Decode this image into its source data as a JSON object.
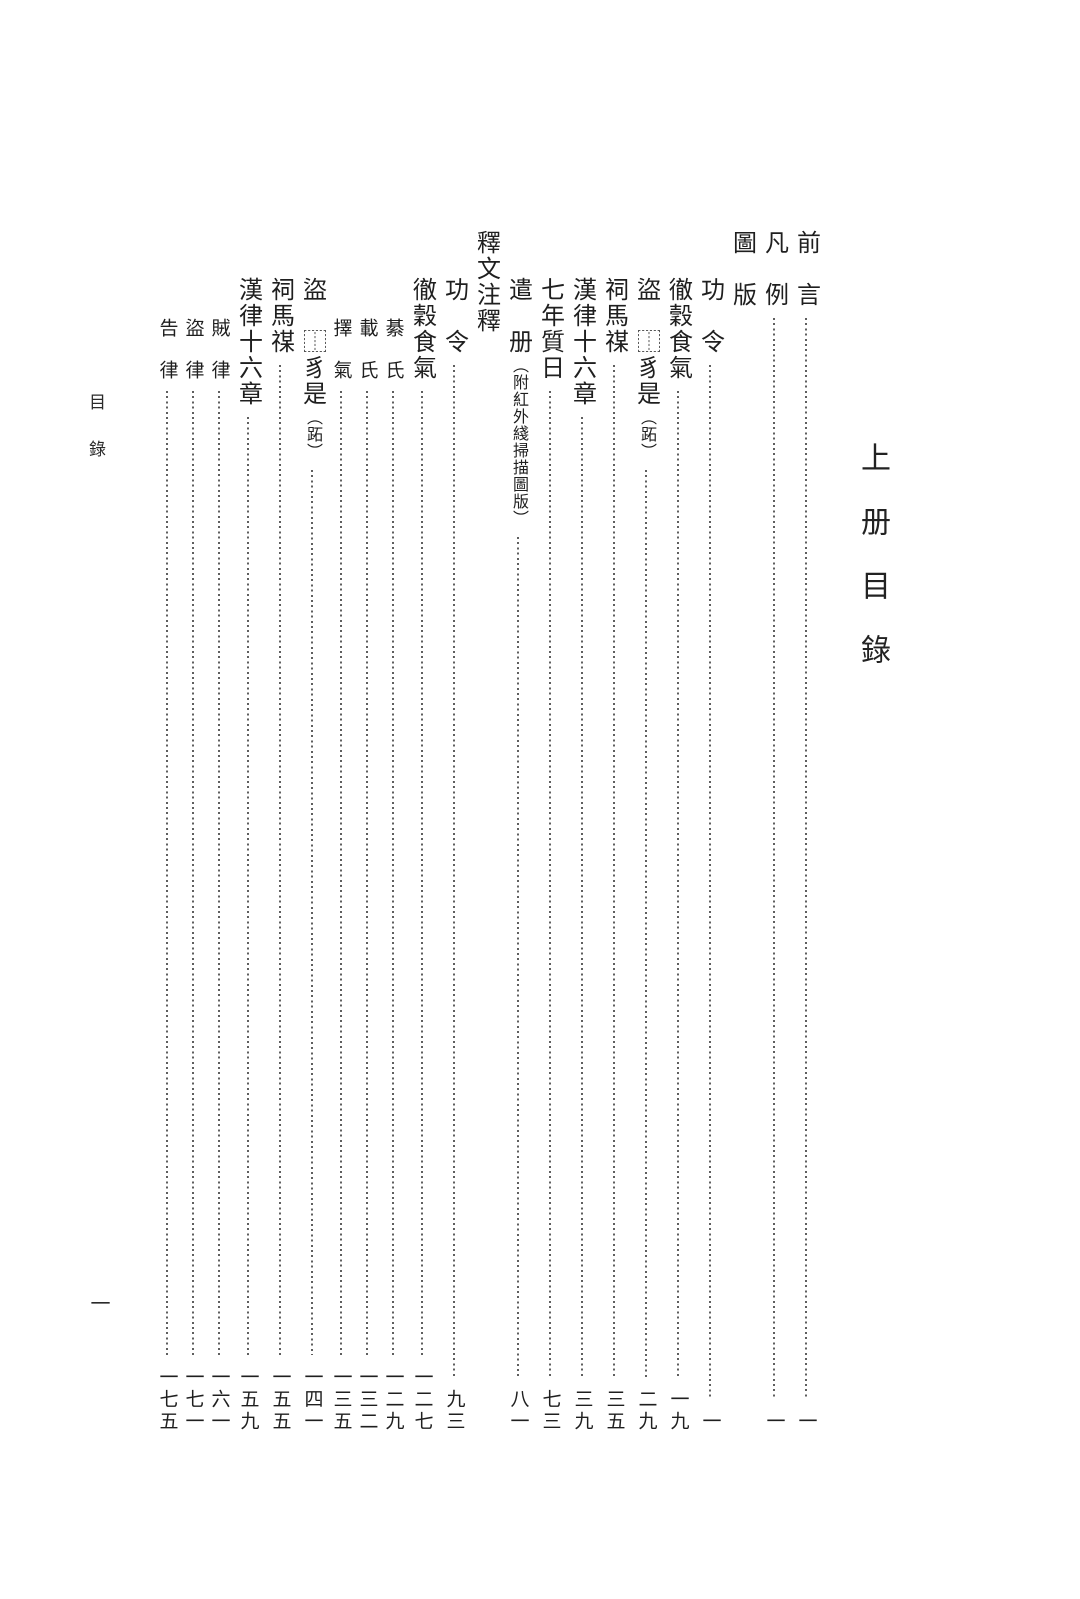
{
  "page": {
    "background": "#ffffff",
    "text_color": "#1f1f1f",
    "leader_dot_color": "#5f5f5f"
  },
  "book_title_vertical": "上　册　目　錄",
  "running_header": "目錄",
  "folio_page_number": "一",
  "toc": {
    "columns": [
      {
        "label": "前　言",
        "annotation": "",
        "page": "一",
        "level": "main",
        "indent": 0
      },
      {
        "label": "凡　例",
        "annotation": "",
        "page": "一",
        "level": "main",
        "indent": 0
      },
      {
        "label": "圖　版",
        "annotation": "",
        "page": "",
        "level": "main",
        "indent": 0
      },
      {
        "label": "功　令",
        "annotation": "",
        "page": "一",
        "level": "main",
        "indent": 1
      },
      {
        "label": "徹穀食氣",
        "annotation": "",
        "page": "一九",
        "level": "main",
        "indent": 1
      },
      {
        "label": "盜　⿰豸是",
        "annotation": "（跖）",
        "page": "二九",
        "level": "main",
        "indent": 1
      },
      {
        "label": "祠馬禖",
        "annotation": "",
        "page": "三五",
        "level": "main",
        "indent": 1
      },
      {
        "label": "漢律十六章",
        "annotation": "",
        "page": "三九",
        "level": "main",
        "indent": 1
      },
      {
        "label": "七年質日",
        "annotation": "",
        "page": "七三",
        "level": "main",
        "indent": 1
      },
      {
        "label": "遣　册",
        "annotation": "（附紅外綫掃描圖版）",
        "page": "八一",
        "level": "main",
        "indent": 1
      },
      {
        "label": "釋文注釋",
        "annotation": "",
        "page": "",
        "level": "main",
        "indent": 0
      },
      {
        "label": "功　令",
        "annotation": "",
        "page": "九三",
        "level": "main",
        "indent": 1
      },
      {
        "label": "徹穀食氣",
        "annotation": "",
        "page": "一二七",
        "level": "main",
        "indent": 1
      },
      {
        "label": "綦　氏",
        "annotation": "",
        "page": "一二九",
        "level": "sub",
        "indent": 2
      },
      {
        "label": "載　氏",
        "annotation": "",
        "page": "一三二",
        "level": "sub",
        "indent": 2
      },
      {
        "label": "擇　氣",
        "annotation": "",
        "page": "一三五",
        "level": "sub",
        "indent": 2
      },
      {
        "label": "盜　⿰豸是",
        "annotation": "（跖）",
        "page": "一四一",
        "level": "main",
        "indent": 1
      },
      {
        "label": "祠馬禖",
        "annotation": "",
        "page": "一五五",
        "level": "main",
        "indent": 1
      },
      {
        "label": "漢律十六章",
        "annotation": "",
        "page": "一五九",
        "level": "main",
        "indent": 1
      },
      {
        "label": "賊　律",
        "annotation": "",
        "page": "一六一",
        "level": "sub",
        "indent": 2
      },
      {
        "label": "盜　律",
        "annotation": "",
        "page": "一七一",
        "level": "sub",
        "indent": 2
      },
      {
        "label": "告　律",
        "annotation": "",
        "page": "一七五",
        "level": "sub",
        "indent": 2
      }
    ]
  }
}
